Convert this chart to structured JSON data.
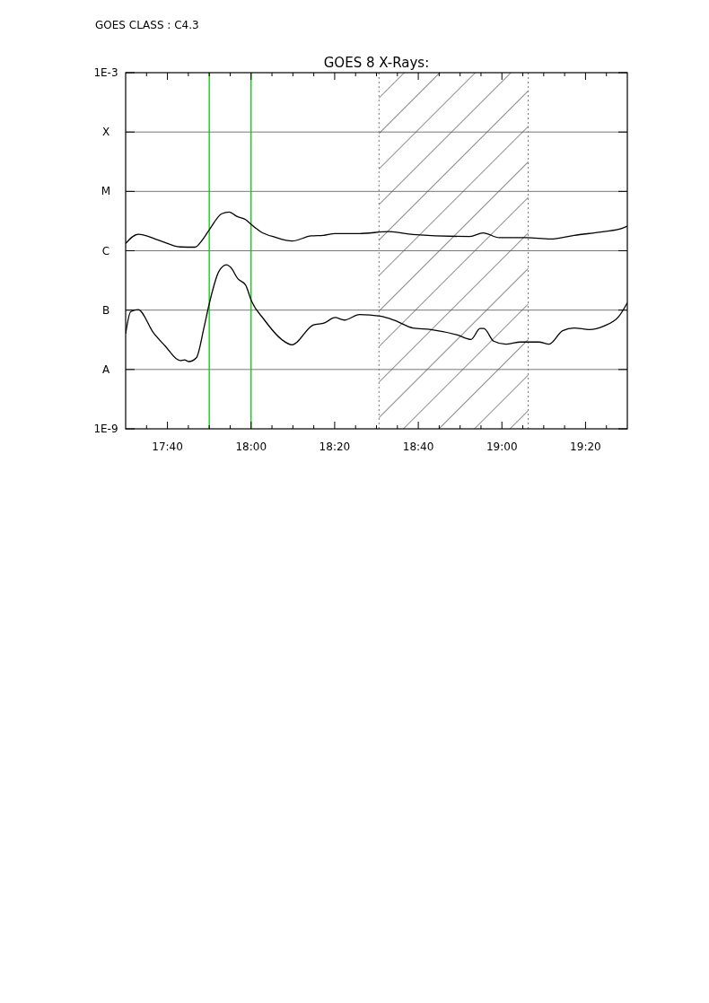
{
  "chart_data": {
    "type": "line",
    "title": "GOES 8 X-Rays:",
    "annotations": [
      "GOES CLASS : C4.3"
    ],
    "log": "y",
    "grid": "y",
    "marker": "none",
    "line_style": "solid",
    "xlim": [
      17.5,
      19.5
    ],
    "ylim": [
      1e-09,
      0.001
    ],
    "xticks": [
      {
        "value": 17.5833,
        "label": null
      },
      {
        "value": 17.6667,
        "label": "17:40"
      },
      {
        "value": 17.75,
        "label": null
      },
      {
        "value": 17.8333,
        "label": null
      },
      {
        "value": 17.9167,
        "label": null
      },
      {
        "value": 18.0,
        "label": "18:00"
      },
      {
        "value": 18.0833,
        "label": null
      },
      {
        "value": 18.1667,
        "label": null
      },
      {
        "value": 18.25,
        "label": null
      },
      {
        "value": 18.3333,
        "label": "18:20"
      },
      {
        "value": 18.4167,
        "label": null
      },
      {
        "value": 18.5,
        "label": null
      },
      {
        "value": 18.5833,
        "label": null
      },
      {
        "value": 18.6667,
        "label": "18:40"
      },
      {
        "value": 18.75,
        "label": null
      },
      {
        "value": 18.8333,
        "label": null
      },
      {
        "value": 18.9167,
        "label": null
      },
      {
        "value": 19.0,
        "label": "19:00"
      },
      {
        "value": 19.0833,
        "label": null
      },
      {
        "value": 19.1667,
        "label": null
      },
      {
        "value": 19.25,
        "label": null
      },
      {
        "value": 19.3333,
        "label": "19:20"
      },
      {
        "value": 19.4167,
        "label": null
      }
    ],
    "yticks": [
      {
        "value": 1e-09,
        "label": "1E-9"
      },
      {
        "value": 1e-08,
        "label": "A"
      },
      {
        "value": 1e-07,
        "label": "B"
      },
      {
        "value": 1e-06,
        "label": "C"
      },
      {
        "value": 1e-05,
        "label": "M"
      },
      {
        "value": 0.0001,
        "label": "X"
      },
      {
        "value": 0.001,
        "label": "1E-3"
      }
    ],
    "ref_lines": [
      {
        "axis": "x",
        "value": 17.8333,
        "color": "#00cc00"
      },
      {
        "axis": "x",
        "value": 18.0,
        "color": "#00cc00"
      },
      {
        "axis": "x",
        "value": 18.51,
        "color": "#777777",
        "line_style": "dotted"
      },
      {
        "axis": "x",
        "value": 19.105,
        "color": "#777777",
        "line_style": "dotted"
      }
    ],
    "bands": [
      {
        "axis": "x",
        "from": 18.51,
        "to": 19.105,
        "color": "#000000"
      }
    ],
    "series": [
      {
        "color": "#000000",
        "x": [
          17.5,
          17.55,
          17.633,
          17.717,
          17.777,
          17.8,
          17.833,
          17.883,
          17.913,
          17.943,
          17.978,
          18.0,
          18.038,
          18.098,
          18.163,
          18.24,
          18.288,
          18.335,
          18.432,
          18.55,
          18.645,
          18.872,
          18.925,
          18.99,
          19.098,
          19.193,
          19.288,
          19.407,
          19.478,
          19.5
        ],
        "values": [
          1.33e-06,
          1.9e-06,
          1.5e-06,
          1.16e-06,
          1.15e-06,
          1.41e-06,
          2.24e-06,
          4.2e-06,
          4.5e-06,
          3.8e-06,
          3.35e-06,
          2.8e-06,
          2.1e-06,
          1.68e-06,
          1.46e-06,
          1.78e-06,
          1.82e-06,
          1.95e-06,
          1.95e-06,
          2.1e-06,
          1.88e-06,
          1.74e-06,
          2e-06,
          1.66e-06,
          1.66e-06,
          1.58e-06,
          1.82e-06,
          2.1e-06,
          2.37e-06,
          2.6e-06
        ]
      },
      {
        "color": "#000000",
        "x": [
          17.5,
          17.52,
          17.55,
          17.61,
          17.657,
          17.717,
          17.735,
          17.752,
          17.782,
          17.812,
          17.833,
          17.872,
          17.902,
          17.918,
          17.948,
          17.978,
          18.002,
          18.05,
          18.122,
          18.163,
          18.247,
          18.293,
          18.335,
          18.372,
          18.432,
          18.515,
          18.573,
          18.645,
          18.717,
          18.823,
          18.877,
          18.913,
          18.928,
          18.967,
          19.015,
          19.075,
          19.147,
          19.188,
          19.242,
          19.288,
          19.348,
          19.407,
          19.467,
          19.5
        ],
        "values": [
          4e-08,
          9.4e-08,
          1.02e-07,
          4.2e-08,
          2.5e-08,
          1.41e-08,
          1.45e-08,
          1.36e-08,
          1.58e-08,
          5e-08,
          1.26e-07,
          4.5e-07,
          5.8e-07,
          5.3e-07,
          3.35e-07,
          2.66e-07,
          1.41e-07,
          7.1e-08,
          3.2e-08,
          2.6e-08,
          5.6e-08,
          6.1e-08,
          7.5e-08,
          6.8e-08,
          8.4e-08,
          7.9e-08,
          6.7e-08,
          5e-08,
          4.7e-08,
          3.8e-08,
          3.2e-08,
          4.9e-08,
          4.9e-08,
          3e-08,
          2.66e-08,
          2.9e-08,
          2.9e-08,
          2.66e-08,
          4.5e-08,
          5e-08,
          4.7e-08,
          5.4e-08,
          7.9e-08,
          1.33e-07
        ]
      }
    ]
  }
}
